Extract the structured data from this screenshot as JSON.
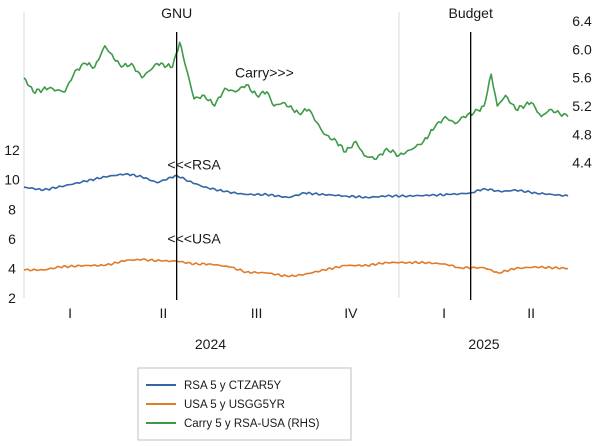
{
  "chart_data": {
    "type": "line",
    "title": "",
    "xlabel": "",
    "ylabel": "",
    "x_quarters": [
      "I",
      "II",
      "III",
      "IV",
      "I",
      "II"
    ],
    "x_years": [
      "2024",
      "2025"
    ],
    "x_range": [
      "2024-01-01",
      "2025-06-15"
    ],
    "y_left": {
      "ticks": [
        "2",
        "4",
        "6",
        "8",
        "10",
        "12"
      ],
      "ylim": [
        2,
        13.5
      ]
    },
    "y_right": {
      "ticks": [
        "4.4",
        "4.8",
        "5.2",
        "5.6",
        "6.0",
        "6.4"
      ],
      "ylim": [
        3.9,
        6.5
      ]
    },
    "grid": "vertical-year-lines",
    "legend_position": "bottom-left",
    "vlines": [
      {
        "label": "GNU",
        "date": "2024-05-29"
      },
      {
        "label": "Budget",
        "date": "2025-03-12"
      }
    ],
    "annotations": [
      {
        "text": "Carry>>>",
        "date": "2024-07-25",
        "value": 5.6,
        "axis": "right"
      },
      {
        "text": "<<<RSA",
        "date": "2024-05-20",
        "value": 10.7,
        "axis": "left"
      },
      {
        "text": "<<<USA",
        "date": "2024-05-20",
        "value": 5.7,
        "axis": "left"
      }
    ],
    "series": [
      {
        "name": "RSA 5 y CTZAR5Y",
        "axis": "left",
        "color": "#3465a4",
        "points": [
          [
            "2024-01-01",
            9.5
          ],
          [
            "2024-01-20",
            9.3
          ],
          [
            "2024-02-10",
            9.6
          ],
          [
            "2024-03-01",
            9.9
          ],
          [
            "2024-03-20",
            10.2
          ],
          [
            "2024-04-10",
            10.4
          ],
          [
            "2024-04-25",
            10.2
          ],
          [
            "2024-05-10",
            9.8
          ],
          [
            "2024-05-29",
            10.3
          ],
          [
            "2024-06-10",
            9.9
          ],
          [
            "2024-06-25",
            9.5
          ],
          [
            "2024-07-15",
            9.2
          ],
          [
            "2024-08-05",
            9.0
          ],
          [
            "2024-08-25",
            9.0
          ],
          [
            "2024-09-15",
            8.8
          ],
          [
            "2024-10-01",
            9.1
          ],
          [
            "2024-10-20",
            9.0
          ],
          [
            "2024-11-10",
            8.9
          ],
          [
            "2024-12-01",
            8.8
          ],
          [
            "2024-12-20",
            8.9
          ],
          [
            "2025-01-10",
            8.9
          ],
          [
            "2025-02-01",
            8.95
          ],
          [
            "2025-02-20",
            9.0
          ],
          [
            "2025-03-12",
            9.1
          ],
          [
            "2025-03-25",
            9.4
          ],
          [
            "2025-04-10",
            9.2
          ],
          [
            "2025-04-25",
            9.3
          ],
          [
            "2025-05-15",
            9.1
          ],
          [
            "2025-06-15",
            8.9
          ]
        ]
      },
      {
        "name": "USA 5 y USGG5YR",
        "axis": "left",
        "color": "#e07b29",
        "points": [
          [
            "2024-01-01",
            3.9
          ],
          [
            "2024-01-20",
            3.9
          ],
          [
            "2024-02-05",
            4.1
          ],
          [
            "2024-03-01",
            4.2
          ],
          [
            "2024-03-20",
            4.2
          ],
          [
            "2024-04-10",
            4.55
          ],
          [
            "2024-04-25",
            4.6
          ],
          [
            "2024-05-15",
            4.5
          ],
          [
            "2024-05-29",
            4.5
          ],
          [
            "2024-06-15",
            4.3
          ],
          [
            "2024-07-01",
            4.3
          ],
          [
            "2024-07-20",
            4.1
          ],
          [
            "2024-08-05",
            3.75
          ],
          [
            "2024-08-25",
            3.7
          ],
          [
            "2024-09-15",
            3.45
          ],
          [
            "2024-10-01",
            3.6
          ],
          [
            "2024-10-20",
            3.9
          ],
          [
            "2024-11-10",
            4.2
          ],
          [
            "2024-12-01",
            4.2
          ],
          [
            "2024-12-20",
            4.4
          ],
          [
            "2025-01-10",
            4.4
          ],
          [
            "2025-01-25",
            4.4
          ],
          [
            "2025-02-15",
            4.3
          ],
          [
            "2025-03-01",
            4.05
          ],
          [
            "2025-03-25",
            4.05
          ],
          [
            "2025-04-08",
            3.7
          ],
          [
            "2025-04-25",
            4.0
          ],
          [
            "2025-05-15",
            4.1
          ],
          [
            "2025-06-15",
            4.0
          ]
        ]
      },
      {
        "name": "Carry 5 y RSA-USA (RHS)",
        "axis": "right",
        "color": "#3f9a48",
        "points": [
          [
            "2024-01-01",
            5.6
          ],
          [
            "2024-01-10",
            5.4
          ],
          [
            "2024-01-25",
            5.45
          ],
          [
            "2024-02-10",
            5.4
          ],
          [
            "2024-02-20",
            5.7
          ],
          [
            "2024-03-01",
            5.8
          ],
          [
            "2024-03-10",
            5.75
          ],
          [
            "2024-03-20",
            6.05
          ],
          [
            "2024-03-25",
            5.95
          ],
          [
            "2024-04-05",
            5.75
          ],
          [
            "2024-04-15",
            5.8
          ],
          [
            "2024-04-25",
            5.6
          ],
          [
            "2024-05-10",
            5.8
          ],
          [
            "2024-05-25",
            5.75
          ],
          [
            "2024-06-01",
            6.1
          ],
          [
            "2024-06-08",
            5.7
          ],
          [
            "2024-06-15",
            5.3
          ],
          [
            "2024-06-25",
            5.35
          ],
          [
            "2024-07-05",
            5.2
          ],
          [
            "2024-07-15",
            5.45
          ],
          [
            "2024-07-25",
            5.4
          ],
          [
            "2024-08-05",
            5.5
          ],
          [
            "2024-08-15",
            5.35
          ],
          [
            "2024-08-25",
            5.4
          ],
          [
            "2024-09-01",
            5.2
          ],
          [
            "2024-09-10",
            5.25
          ],
          [
            "2024-09-25",
            5.1
          ],
          [
            "2024-10-05",
            5.15
          ],
          [
            "2024-10-20",
            4.8
          ],
          [
            "2024-11-01",
            4.7
          ],
          [
            "2024-11-10",
            4.55
          ],
          [
            "2024-11-20",
            4.7
          ],
          [
            "2024-11-28",
            4.5
          ],
          [
            "2024-12-10",
            4.45
          ],
          [
            "2024-12-20",
            4.6
          ],
          [
            "2025-01-01",
            4.5
          ],
          [
            "2025-01-15",
            4.6
          ],
          [
            "2025-01-25",
            4.7
          ],
          [
            "2025-02-05",
            4.9
          ],
          [
            "2025-02-15",
            5.05
          ],
          [
            "2025-02-25",
            4.95
          ],
          [
            "2025-03-05",
            5.05
          ],
          [
            "2025-03-15",
            5.1
          ],
          [
            "2025-03-25",
            5.2
          ],
          [
            "2025-04-01",
            5.65
          ],
          [
            "2025-04-07",
            5.2
          ],
          [
            "2025-04-15",
            5.35
          ],
          [
            "2025-04-25",
            5.15
          ],
          [
            "2025-05-10",
            5.25
          ],
          [
            "2025-05-20",
            5.05
          ],
          [
            "2025-05-28",
            5.15
          ],
          [
            "2025-06-15",
            5.05
          ]
        ]
      }
    ]
  }
}
